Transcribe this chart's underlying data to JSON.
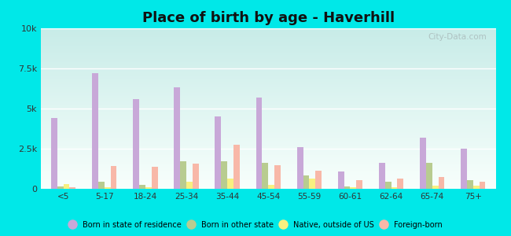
{
  "title": "Place of birth by age - Haverhill",
  "categories": [
    "<5",
    "5-17",
    "18-24",
    "25-34",
    "35-44",
    "45-54",
    "55-59",
    "60-61",
    "62-64",
    "65-74",
    "75+"
  ],
  "series": {
    "Born in state of residence": [
      4400,
      7200,
      5600,
      6300,
      4500,
      5700,
      2600,
      1100,
      1600,
      3200,
      2500
    ],
    "Born in other state": [
      150,
      450,
      250,
      1700,
      1700,
      1600,
      850,
      150,
      450,
      1600,
      550
    ],
    "Native, outside of US": [
      300,
      80,
      80,
      450,
      650,
      250,
      650,
      80,
      80,
      180,
      180
    ],
    "Foreign-born": [
      80,
      1400,
      1350,
      1550,
      2750,
      1450,
      1150,
      550,
      650,
      750,
      450
    ]
  },
  "colors": {
    "Born in state of residence": "#c8a8d8",
    "Born in other state": "#b8cc90",
    "Native, outside of US": "#f8f080",
    "Foreign-born": "#f8b8a8"
  },
  "ylim": [
    0,
    10000
  ],
  "yticks": [
    0,
    2500,
    5000,
    7500,
    10000
  ],
  "ytick_labels": [
    "0",
    "2.5k",
    "5k",
    "7.5k",
    "10k"
  ],
  "background_color": "#00e8e8",
  "plot_bg_color_top": "#c8ece8",
  "plot_bg_color_bottom": "#f0faf8",
  "title_fontsize": 13,
  "watermark": "City-Data.com"
}
